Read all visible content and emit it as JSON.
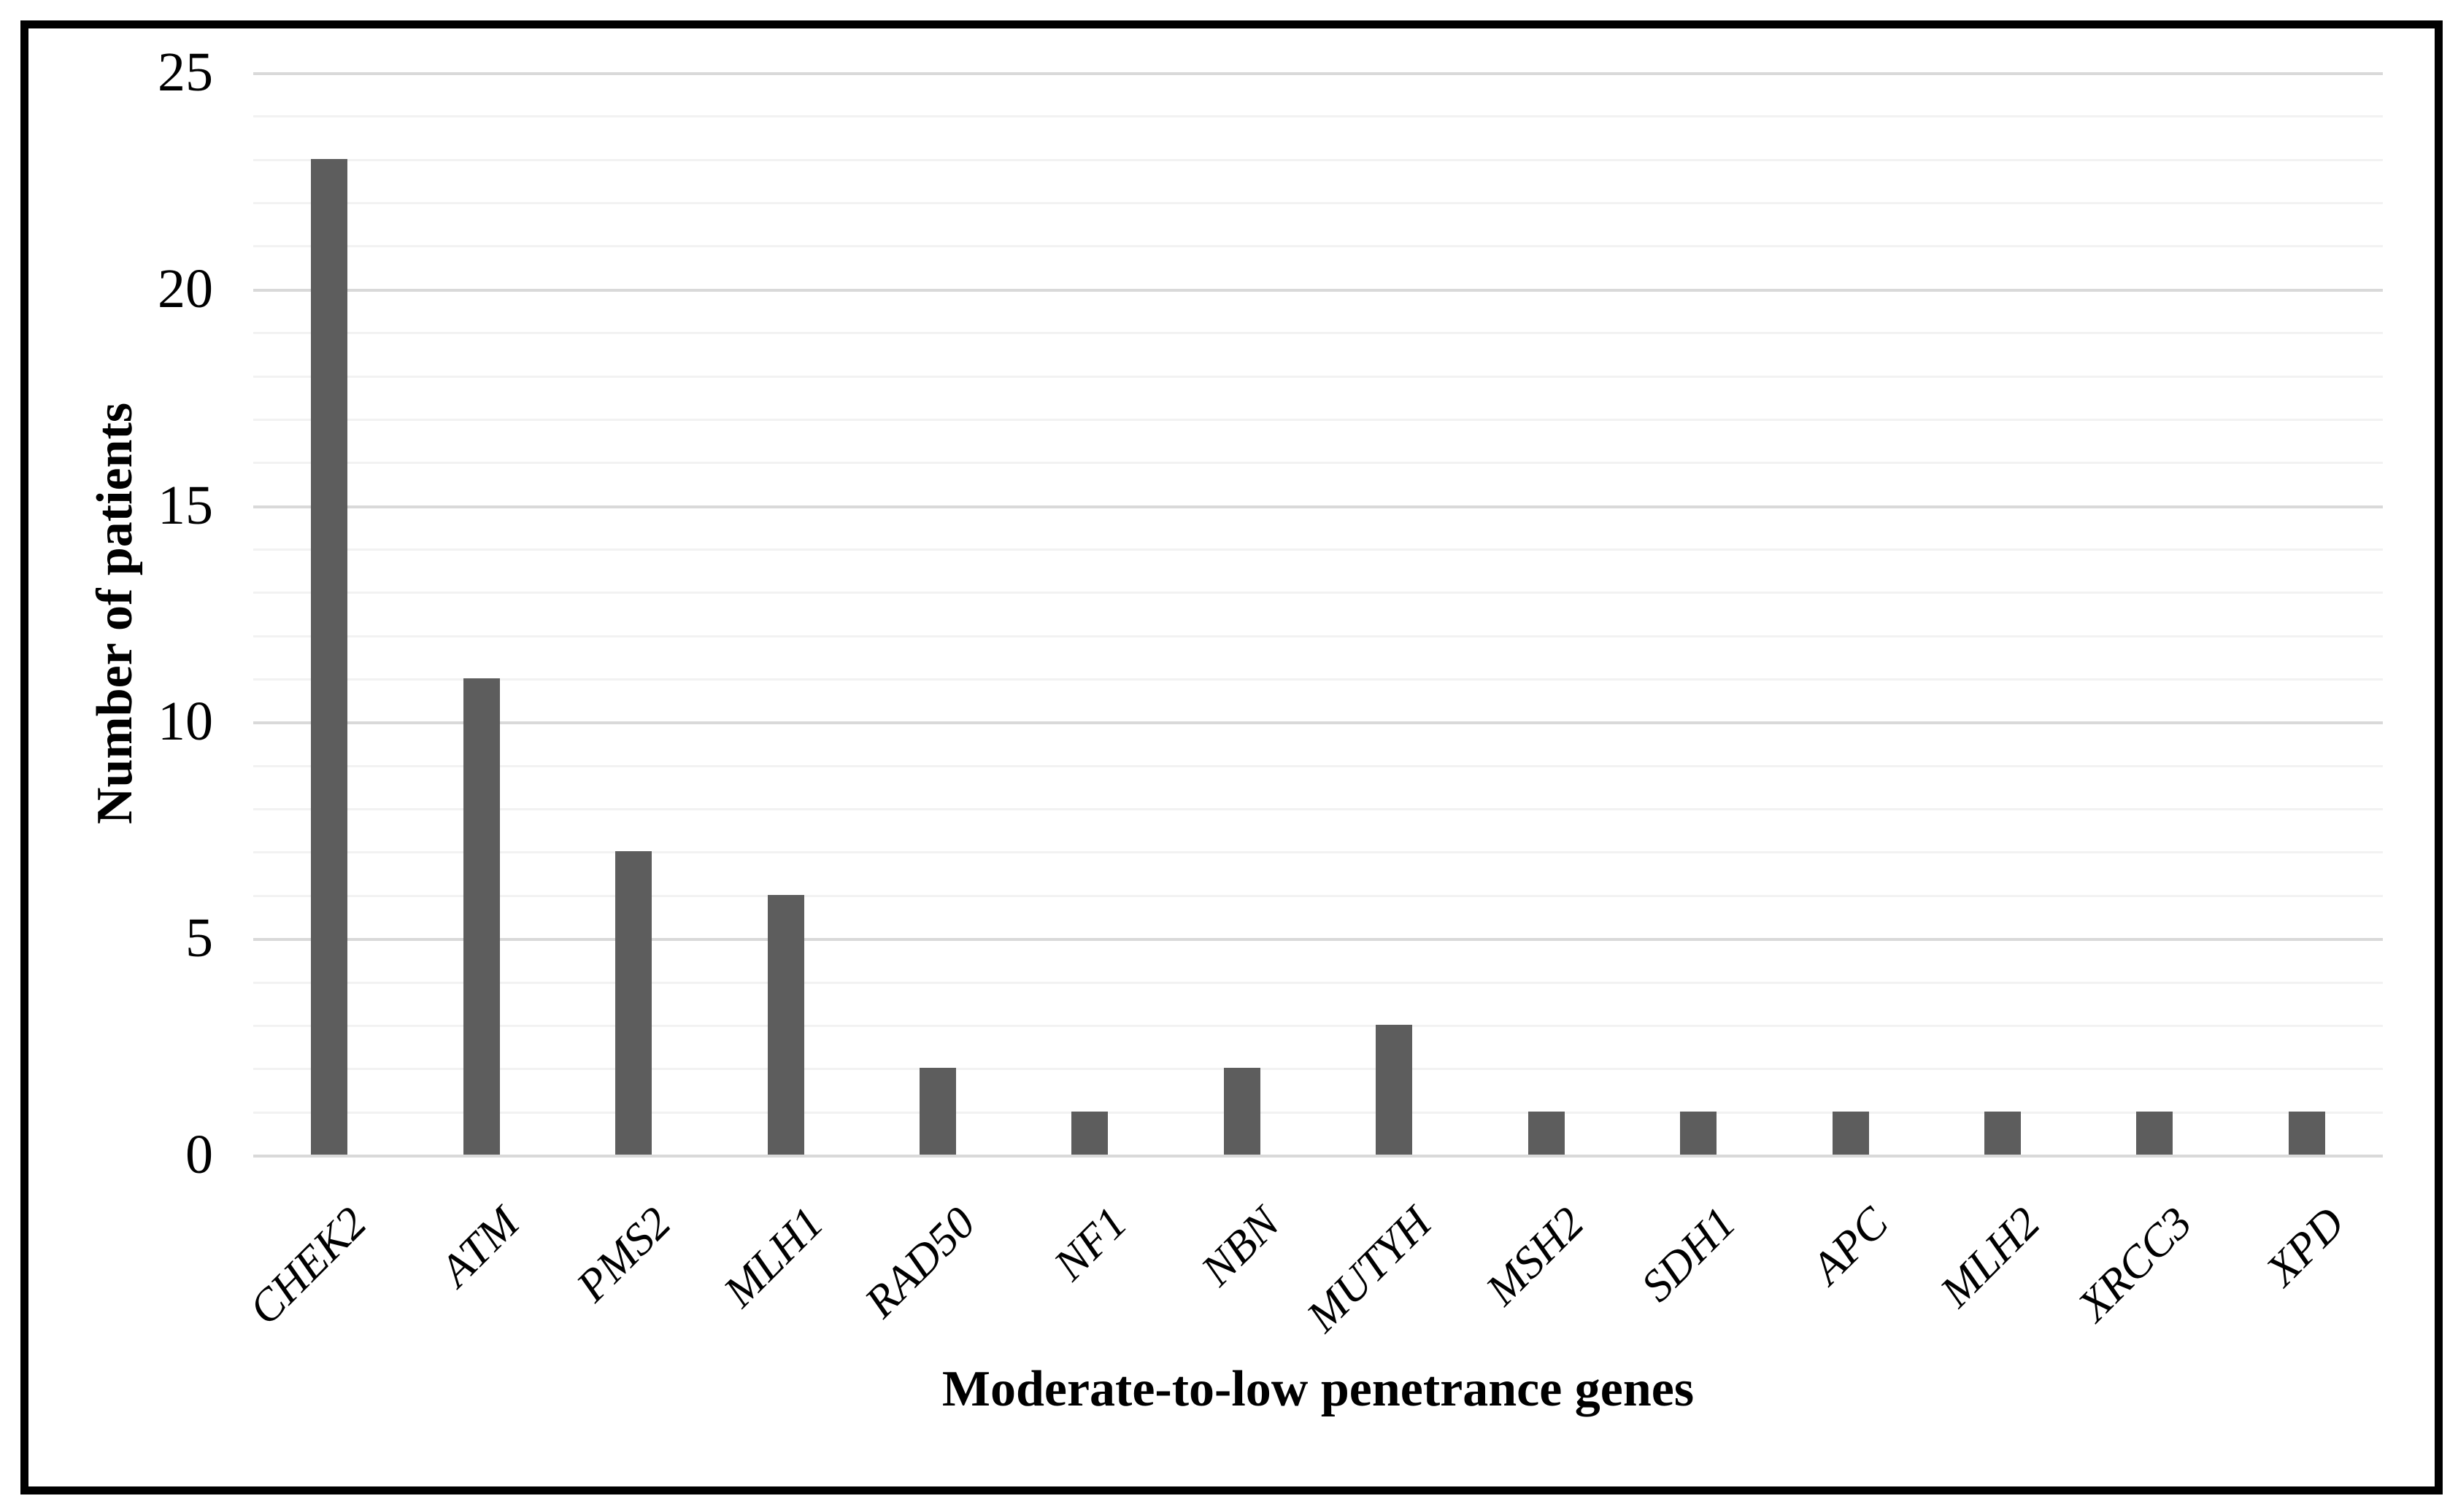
{
  "figure": {
    "kind": "statistical bar chart figure",
    "frame_color": "#000000",
    "background_color": "#ffffff"
  },
  "chart_data": {
    "type": "bar",
    "categories": [
      "CHEK2",
      "ATM",
      "PMS2",
      "MLH1",
      "RAD50",
      "NF1",
      "NBN",
      "MUTYH",
      "MSH2",
      "SDH1",
      "APC",
      "MLH2",
      "XRCC3",
      "XPD"
    ],
    "values": [
      23,
      11,
      7,
      6,
      2,
      1,
      2,
      3,
      1,
      1,
      1,
      1,
      1,
      1
    ],
    "title": "",
    "xlabel": "Moderate-to-low penetrance genes",
    "ylabel": "Number of patients",
    "ylim": [
      0,
      25
    ],
    "yticks": [
      0,
      5,
      10,
      15,
      20,
      25
    ],
    "minor_gridline_step": 1,
    "grid": true,
    "legend": false,
    "bar_color": "#5d5d5d",
    "major_gridline_color": "#d9d9d9",
    "minor_gridline_color": "#f2f2f2",
    "axis_line_color": "#d9d9d9",
    "text_color": "#000000"
  }
}
